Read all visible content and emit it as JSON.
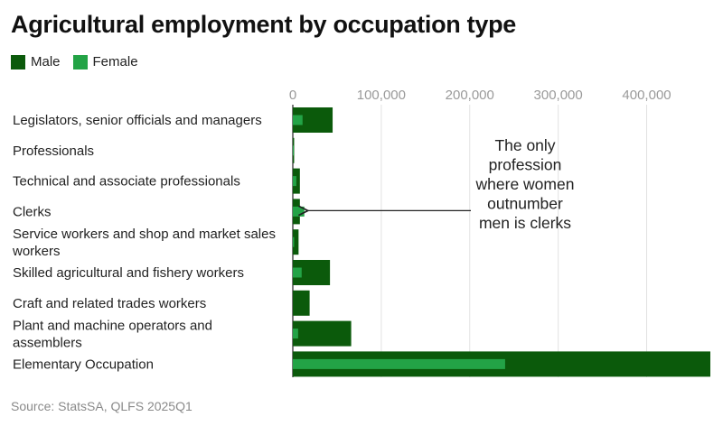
{
  "chart_data": {
    "type": "bar",
    "orientation": "horizontal",
    "title": "Agricultural employment by occupation type",
    "categories": [
      [
        "Legislators, senior officials and managers"
      ],
      [
        "Professionals"
      ],
      [
        "Technical and associate professionals"
      ],
      [
        "Clerks"
      ],
      [
        "Service workers and shop and market sales",
        "workers"
      ],
      [
        "Skilled agricultural and fishery workers"
      ],
      [
        "Craft and related trades workers"
      ],
      [
        "Plant and machine operators and",
        "assemblers"
      ],
      [
        "Elementary Occupation"
      ]
    ],
    "series": [
      {
        "name": "Male",
        "color": "#0b5a0b",
        "values": [
          45000,
          1500,
          8000,
          8000,
          6500,
          42000,
          19000,
          66000,
          472000
        ]
      },
      {
        "name": "Female",
        "color": "#23a346",
        "values": [
          11000,
          500,
          4000,
          13000,
          1500,
          10000,
          0,
          6000,
          240000
        ]
      }
    ],
    "xlim": [
      0,
      472000
    ],
    "xticks": [
      0,
      100000,
      200000,
      300000,
      400000
    ],
    "xtick_labels": [
      "0",
      "100,000",
      "200,000",
      "300,000",
      "400,000"
    ],
    "grid": true,
    "legend_position": "top-left",
    "annotation": {
      "lines": [
        "The only",
        "profession",
        "where women",
        "outnumber",
        "men is clerks"
      ],
      "points_to": "Clerks"
    }
  },
  "source": "Source: StatsSA, QLFS 2025Q1"
}
